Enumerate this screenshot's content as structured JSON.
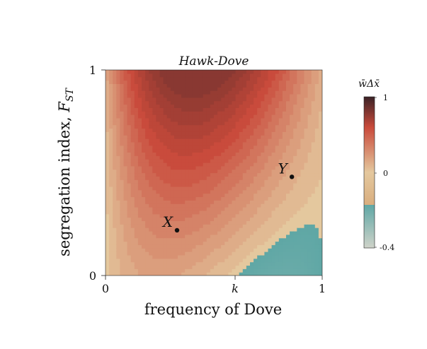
{
  "chart_data": {
    "type": "heatmap",
    "title": "Hawk-Dove",
    "xlabel": "frequency of Dove",
    "ylabel_main": "segregation index, ",
    "ylabel_var": "F",
    "ylabel_sub": "ST",
    "x_ticks": [
      "0",
      "k",
      "1"
    ],
    "x_tick_values": [
      0,
      0.6,
      1
    ],
    "y_ticks": [
      "0",
      "1"
    ],
    "y_tick_values": [
      0,
      1
    ],
    "xlim": [
      0,
      1
    ],
    "ylim": [
      0,
      1
    ],
    "colorbar": {
      "label": "w̄Δx̄",
      "ticks": [
        "1",
        "0",
        "-0.4"
      ],
      "tick_values": [
        1,
        0,
        -0.4
      ],
      "range": [
        -0.4,
        1
      ]
    },
    "points": [
      {
        "label": "X",
        "x": 0.33,
        "y": 0.22
      },
      {
        "label": "Y",
        "x": 0.86,
        "y": 0.48
      }
    ],
    "k": 0.6,
    "colors": {
      "positive_high": "#3a2226",
      "positive_mid": "#c94a3b",
      "positive_low": "#e4c89e",
      "zero_positive": "#d9ae7f",
      "zero_negative": "#5fa7a5",
      "negative_low": "#cfd3c9"
    }
  }
}
